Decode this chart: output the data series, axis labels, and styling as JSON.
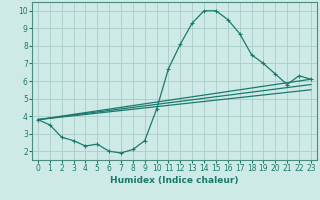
{
  "xlabel": "Humidex (Indice chaleur)",
  "bg_color": "#ceeae6",
  "grid_color": "#aaccc8",
  "line_color": "#1a7a6e",
  "xlim": [
    -0.5,
    23.5
  ],
  "ylim": [
    1.5,
    10.5
  ],
  "xticks": [
    0,
    1,
    2,
    3,
    4,
    5,
    6,
    7,
    8,
    9,
    10,
    11,
    12,
    13,
    14,
    15,
    16,
    17,
    18,
    19,
    20,
    21,
    22,
    23
  ],
  "yticks": [
    2,
    3,
    4,
    5,
    6,
    7,
    8,
    9,
    10
  ],
  "series1_x": [
    0,
    1,
    2,
    3,
    4,
    5,
    6,
    7,
    8,
    9,
    10,
    11,
    12,
    13,
    14,
    15,
    16,
    17,
    18,
    19,
    20,
    21,
    22,
    23
  ],
  "series1_y": [
    3.8,
    3.5,
    2.8,
    2.6,
    2.3,
    2.4,
    2.0,
    1.9,
    2.1,
    2.6,
    4.4,
    6.7,
    8.1,
    9.3,
    10.0,
    10.0,
    9.5,
    8.7,
    7.5,
    7.0,
    6.4,
    5.8,
    6.3,
    6.1
  ],
  "series2_x": [
    0,
    23
  ],
  "series2_y": [
    3.8,
    6.1
  ],
  "series3_x": [
    0,
    23
  ],
  "series3_y": [
    3.8,
    5.8
  ],
  "series4_x": [
    0,
    23
  ],
  "series4_y": [
    3.8,
    5.5
  ],
  "xlabel_fontsize": 6.5,
  "tick_fontsize": 5.5,
  "spine_color": "#4a8a80"
}
